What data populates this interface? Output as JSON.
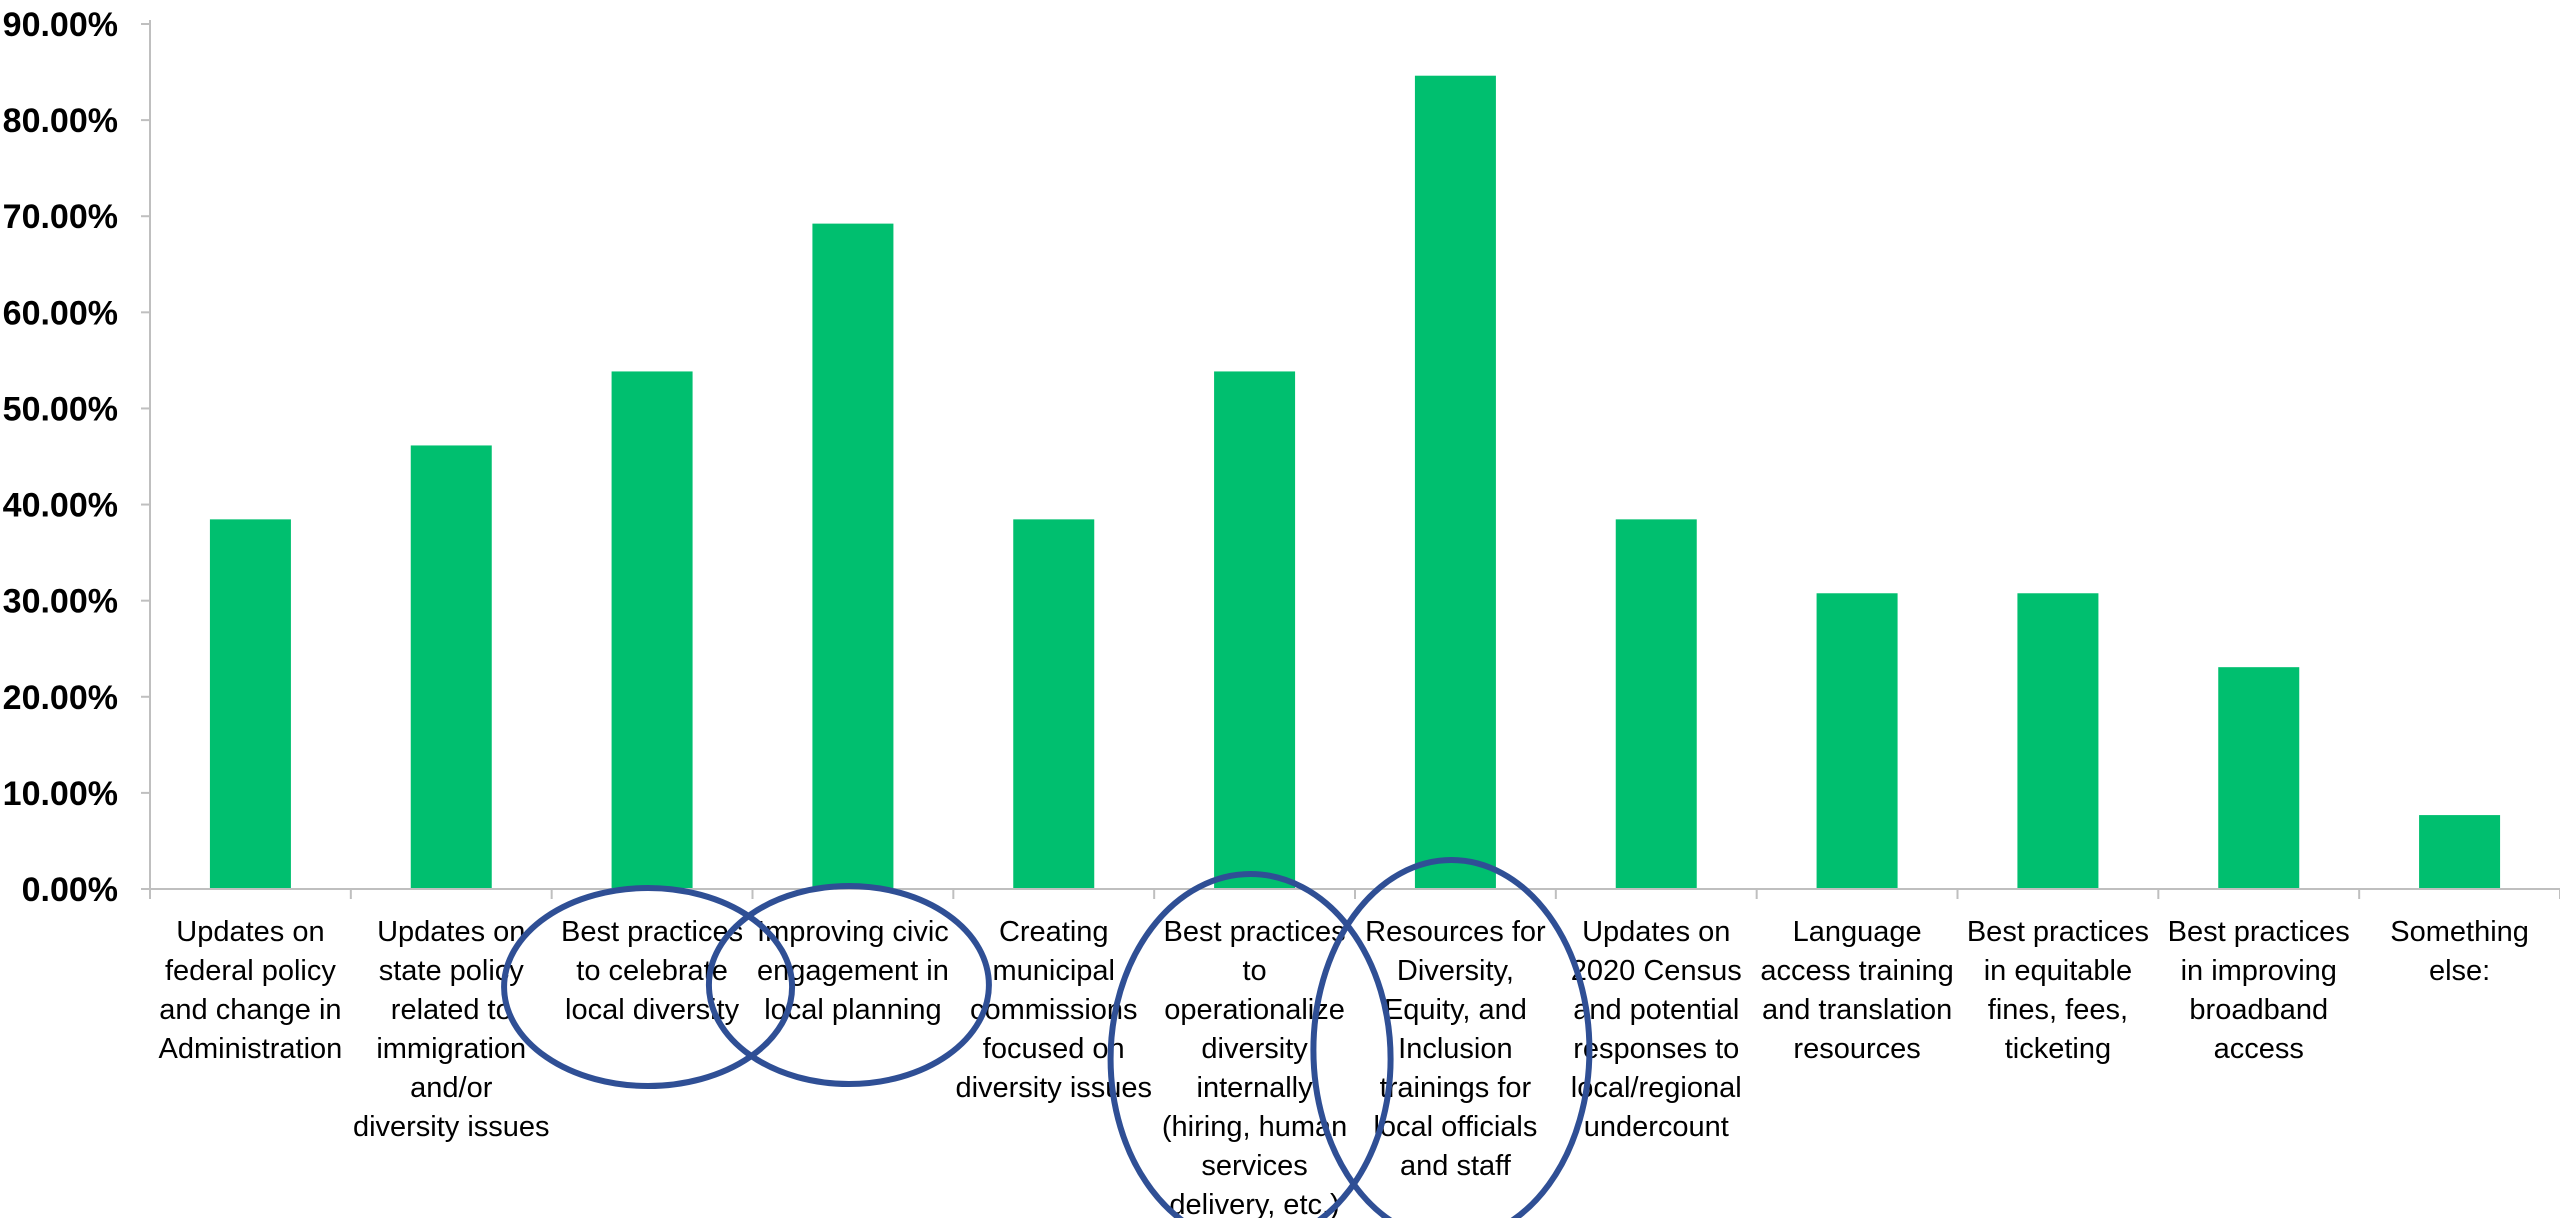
{
  "chart_data": {
    "type": "bar",
    "title": "",
    "xlabel": "",
    "ylabel": "",
    "ylim": [
      0,
      0.9
    ],
    "y_ticks": [
      "0.00%",
      "10.00%",
      "20.00%",
      "30.00%",
      "40.00%",
      "50.00%",
      "60.00%",
      "70.00%",
      "80.00%",
      "90.00%"
    ],
    "grid": false,
    "legend": "none",
    "bar_color": "#00BF6F",
    "annotation_color": "#2F4F95",
    "categories": [
      "Updates on federal policy and change in Administration",
      "Updates on state policy related to immigration and/or diversity issues",
      "Best practices to celebrate local diversity",
      "Improving civic engagement in local planning",
      "Creating municipal commissions focused on diversity issues",
      "Best practices to operationalize diversity internally (hiring, human services delivery, etc.)",
      "Resources for Diversity, Equity, and Inclusion trainings for local officials and staff",
      "Updates on 2020 Census and potential responses to local/regional undercount",
      "Language access training and translation resources",
      "Best practices in equitable fines, fees, ticketing",
      "Best practices in improving broadband access",
      "Something else:"
    ],
    "category_lines": [
      [
        "Updates on",
        "federal policy",
        "and change in",
        "Administration"
      ],
      [
        "Updates on",
        "state policy",
        "related to",
        "immigration",
        "and/or",
        "diversity issues"
      ],
      [
        "Best practices",
        "to celebrate",
        "local diversity"
      ],
      [
        "Improving civic",
        "engagement in",
        "local planning"
      ],
      [
        "Creating",
        "municipal",
        "commissions",
        "focused on",
        "diversity issues"
      ],
      [
        "Best practices",
        "to",
        "operationalize",
        "diversity",
        "internally",
        "(hiring, human",
        "services",
        "delivery, etc.)"
      ],
      [
        "Resources for",
        "Diversity,",
        "Equity, and",
        "Inclusion",
        "trainings for",
        "local officials",
        "and staff"
      ],
      [
        "Updates on",
        "2020 Census",
        "and potential",
        "responses to",
        "local/regional",
        "undercount"
      ],
      [
        "Language",
        "access training",
        "and translation",
        "resources"
      ],
      [
        "Best practices",
        "in equitable",
        "fines, fees,",
        "ticketing"
      ],
      [
        "Best practices",
        "in improving",
        "broadband",
        "access"
      ],
      [
        "Something",
        "else:"
      ]
    ],
    "values": [
      0.3846,
      0.4615,
      0.5385,
      0.6923,
      0.3846,
      0.5385,
      0.8462,
      0.3846,
      0.3077,
      0.3077,
      0.2308,
      0.0769
    ],
    "highlighted_categories": [
      2,
      3,
      5,
      6
    ]
  }
}
